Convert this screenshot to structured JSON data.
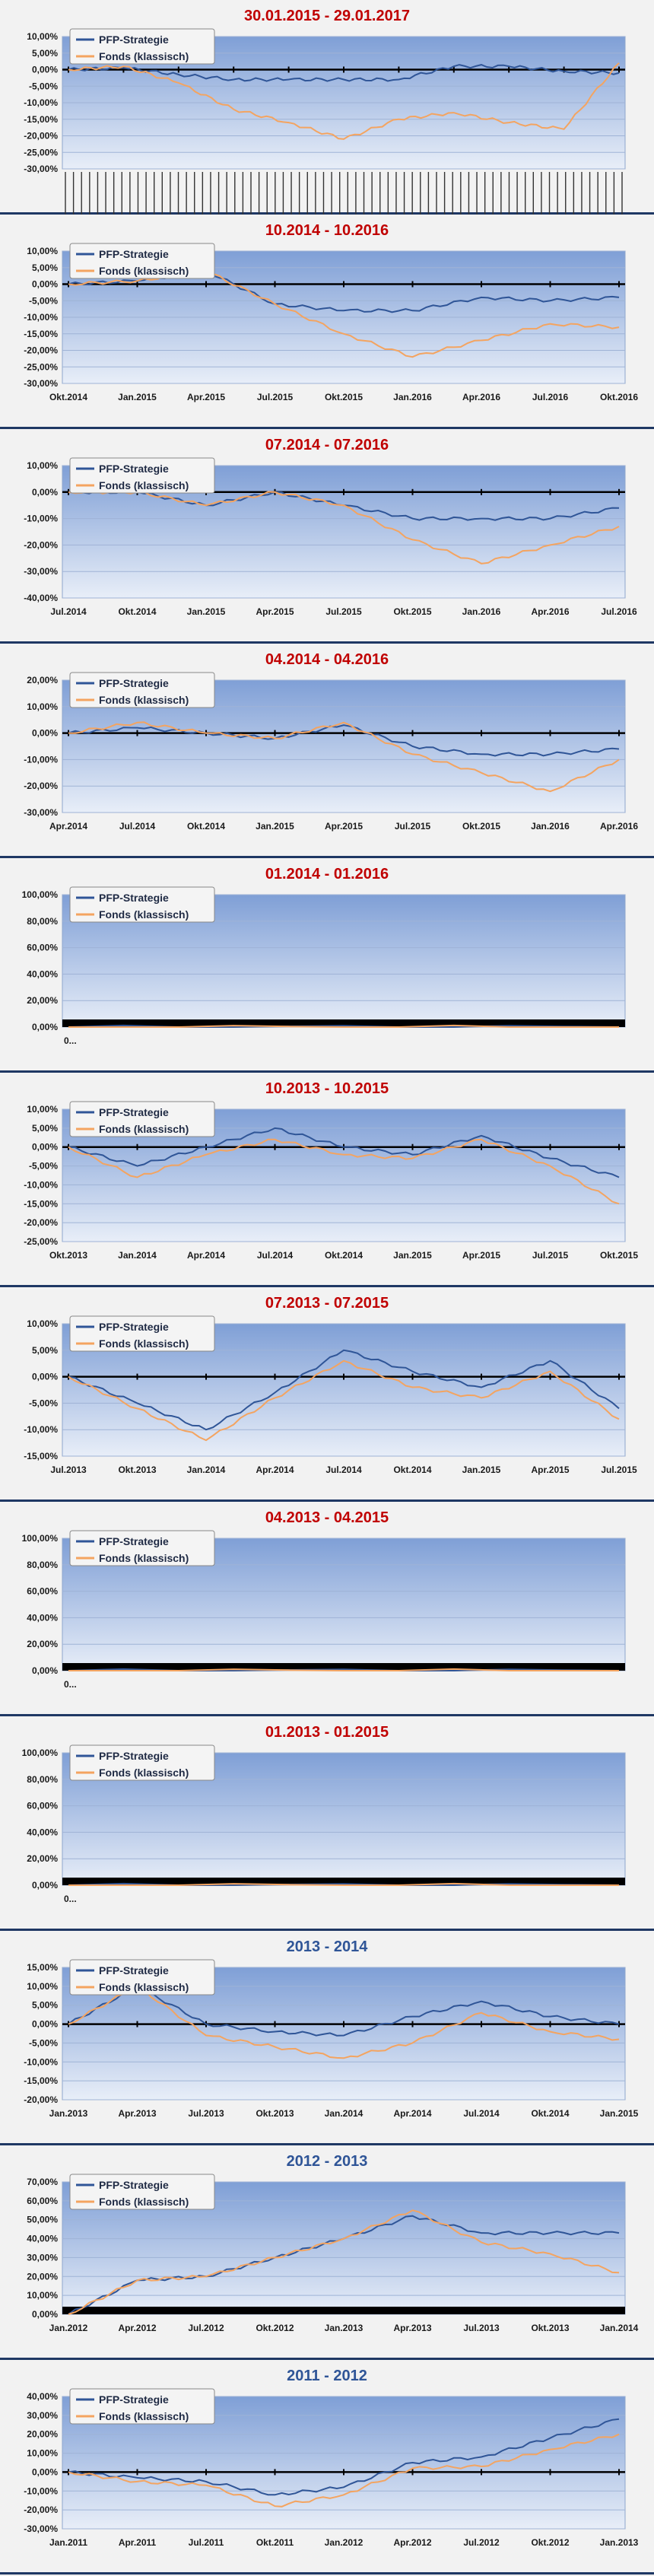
{
  "chart_data": [
    {
      "type": "line",
      "title": "30.01.2015 - 29.01.2017",
      "title_color": "#c00000",
      "ylim": [
        -30,
        10
      ],
      "yticks": [
        "10,00%",
        "5,00%",
        "0,00%",
        "-5,00%",
        "-10,00%",
        "-15,00%",
        "-20,00%",
        "-25,00%",
        "-30,00%"
      ],
      "x": [
        0,
        10,
        20,
        30,
        40,
        50,
        60,
        70,
        80,
        90,
        100
      ],
      "xticks": [],
      "dense_dates": true,
      "grid": true,
      "legend": "top-left",
      "series": [
        {
          "name": "PFP-Strategie",
          "color": "#2f5597",
          "values": [
            0,
            0.5,
            -1.5,
            -3,
            -3,
            -3,
            -3,
            1,
            1,
            -0.5,
            -1
          ]
        },
        {
          "name": "Fonds (klassisch)",
          "color": "#f4a460",
          "values": [
            0,
            1,
            -4,
            -12,
            -16,
            -21,
            -15,
            -13,
            -16,
            -18,
            2
          ]
        }
      ]
    },
    {
      "type": "line",
      "title": "10.2014 - 10.2016",
      "title_color": "#c00000",
      "ylim": [
        -30,
        10
      ],
      "yticks": [
        "10,00%",
        "5,00%",
        "0,00%",
        "-5,00%",
        "-10,00%",
        "-15,00%",
        "-20,00%",
        "-25,00%",
        "-30,00%"
      ],
      "x": [
        0,
        1,
        2,
        3,
        4,
        5,
        6,
        7,
        8
      ],
      "xticks": [
        "Okt.2014",
        "Jan.2015",
        "Apr.2015",
        "Jul.2015",
        "Okt.2015",
        "Jan.2016",
        "Apr.2016",
        "Jul.2016",
        "Okt.2016"
      ],
      "grid": true,
      "legend": "top-left",
      "series": [
        {
          "name": "PFP-Strategie",
          "color": "#2f5597",
          "values": [
            0,
            1,
            4,
            -6,
            -8,
            -8,
            -4,
            -5,
            -4
          ]
        },
        {
          "name": "Fonds (klassisch)",
          "color": "#f4a460",
          "values": [
            0,
            1,
            4,
            -6,
            -15,
            -22,
            -17,
            -12,
            -13
          ]
        }
      ]
    },
    {
      "type": "line",
      "title": "07.2014 - 07.2016",
      "title_color": "#c00000",
      "ylim": [
        -40,
        10
      ],
      "yticks": [
        "10,00%",
        "0,00%",
        "-10,00%",
        "-20,00%",
        "-30,00%",
        "-40,00%"
      ],
      "x": [
        0,
        1,
        2,
        3,
        4,
        5,
        6,
        7,
        8
      ],
      "xticks": [
        "Jul.2014",
        "Okt.2014",
        "Jan.2015",
        "Apr.2015",
        "Jul.2015",
        "Okt.2015",
        "Jan.2016",
        "Apr.2016",
        "Jul.2016"
      ],
      "grid": true,
      "legend": "top-left",
      "series": [
        {
          "name": "PFP-Strategie",
          "color": "#2f5597",
          "values": [
            0,
            0,
            -5,
            0,
            -5,
            -10,
            -10,
            -10,
            -6
          ]
        },
        {
          "name": "Fonds (klassisch)",
          "color": "#f4a460",
          "values": [
            0,
            0,
            -5,
            0,
            -5,
            -18,
            -27,
            -20,
            -13
          ]
        }
      ]
    },
    {
      "type": "line",
      "title": "04.2014 - 04.2016",
      "title_color": "#c00000",
      "ylim": [
        -30,
        20
      ],
      "yticks": [
        "20,00%",
        "10,00%",
        "0,00%",
        "-10,00%",
        "-20,00%",
        "-30,00%"
      ],
      "x": [
        0,
        1,
        2,
        3,
        4,
        5,
        6,
        7,
        8
      ],
      "xticks": [
        "Apr.2014",
        "Jul.2014",
        "Okt.2014",
        "Jan.2015",
        "Apr.2015",
        "Jul.2015",
        "Okt.2015",
        "Jan.2016",
        "Apr.2016"
      ],
      "grid": true,
      "legend": "top-left",
      "series": [
        {
          "name": "PFP-Strategie",
          "color": "#2f5597",
          "values": [
            0,
            2,
            0,
            -2,
            3,
            -5,
            -8,
            -8,
            -6
          ]
        },
        {
          "name": "Fonds (klassisch)",
          "color": "#f4a460",
          "values": [
            0,
            4,
            0,
            -2,
            4,
            -8,
            -15,
            -22,
            -10
          ]
        }
      ]
    },
    {
      "type": "line",
      "title": "01.2014 - 01.2016",
      "title_color": "#c00000",
      "ylim": [
        0,
        100
      ],
      "yticks": [
        "100,00%",
        "80,00%",
        "60,00%",
        "40,00%",
        "20,00%",
        "0,00%"
      ],
      "x": [
        0,
        1
      ],
      "xticks": [
        "0..."
      ],
      "grid": true,
      "legend": "top-left",
      "series": [
        {
          "name": "PFP-Strategie",
          "color": "#2f5597",
          "values": [
            0,
            0
          ]
        },
        {
          "name": "Fonds (klassisch)",
          "color": "#f4a460",
          "values": [
            0,
            0
          ]
        }
      ]
    },
    {
      "type": "line",
      "title": "10.2013 - 10.2015",
      "title_color": "#c00000",
      "ylim": [
        -25,
        10
      ],
      "yticks": [
        "10,00%",
        "5,00%",
        "0,00%",
        "-5,00%",
        "-10,00%",
        "-15,00%",
        "-20,00%",
        "-25,00%"
      ],
      "x": [
        0,
        1,
        2,
        3,
        4,
        5,
        6,
        7,
        8
      ],
      "xticks": [
        "Okt.2013",
        "Jan.2014",
        "Apr.2014",
        "Jul.2014",
        "Okt.2014",
        "Jan.2015",
        "Apr.2015",
        "Jul.2015",
        "Okt.2015"
      ],
      "grid": true,
      "legend": "top-left",
      "series": [
        {
          "name": "PFP-Strategie",
          "color": "#2f5597",
          "values": [
            0,
            -5,
            0,
            5,
            0,
            -2,
            3,
            -3,
            -8
          ]
        },
        {
          "name": "Fonds (klassisch)",
          "color": "#f4a460",
          "values": [
            0,
            -8,
            -2,
            2,
            -2,
            -3,
            2,
            -5,
            -15
          ]
        }
      ]
    },
    {
      "type": "line",
      "title": "07.2013 - 07.2015",
      "title_color": "#c00000",
      "ylim": [
        -15,
        10
      ],
      "yticks": [
        "10,00%",
        "5,00%",
        "0,00%",
        "-5,00%",
        "-10,00%",
        "-15,00%"
      ],
      "x": [
        0,
        1,
        2,
        3,
        4,
        5,
        6,
        7,
        8
      ],
      "xticks": [
        "Jul.2013",
        "Okt.2013",
        "Jan.2014",
        "Apr.2014",
        "Jul.2014",
        "Okt.2014",
        "Jan.2015",
        "Apr.2015",
        "Jul.2015"
      ],
      "grid": true,
      "legend": "top-left",
      "series": [
        {
          "name": "PFP-Strategie",
          "color": "#2f5597",
          "values": [
            0,
            -5,
            -10,
            -3,
            5,
            1,
            -2,
            3,
            -6
          ]
        },
        {
          "name": "Fonds (klassisch)",
          "color": "#f4a460",
          "values": [
            0,
            -6,
            -12,
            -4,
            3,
            -2,
            -4,
            1,
            -8
          ]
        }
      ]
    },
    {
      "type": "line",
      "title": "04.2013 - 04.2015",
      "title_color": "#c00000",
      "ylim": [
        0,
        100
      ],
      "yticks": [
        "100,00%",
        "80,00%",
        "60,00%",
        "40,00%",
        "20,00%",
        "0,00%"
      ],
      "x": [
        0,
        1
      ],
      "xticks": [
        "0..."
      ],
      "grid": true,
      "legend": "top-left",
      "series": [
        {
          "name": "PFP-Strategie",
          "color": "#2f5597",
          "values": [
            0,
            0
          ]
        },
        {
          "name": "Fonds (klassisch)",
          "color": "#f4a460",
          "values": [
            0,
            0
          ]
        }
      ]
    },
    {
      "type": "line",
      "title": "01.2013 - 01.2015",
      "title_color": "#c00000",
      "ylim": [
        0,
        100
      ],
      "yticks": [
        "100,00%",
        "80,00%",
        "60,00%",
        "40,00%",
        "20,00%",
        "0,00%"
      ],
      "x": [
        0,
        1
      ],
      "xticks": [
        "0..."
      ],
      "grid": true,
      "legend": "top-left",
      "series": [
        {
          "name": "PFP-Strategie",
          "color": "#2f5597",
          "values": [
            0,
            0
          ]
        },
        {
          "name": "Fonds (klassisch)",
          "color": "#f4a460",
          "values": [
            0,
            0
          ]
        }
      ]
    },
    {
      "type": "line",
      "title": "2013 - 2014",
      "title_color": "#2f5597",
      "ylim": [
        -20,
        15
      ],
      "yticks": [
        "15,00%",
        "10,00%",
        "5,00%",
        "0,00%",
        "-5,00%",
        "-10,00%",
        "-15,00%",
        "-20,00%"
      ],
      "x": [
        0,
        1,
        2,
        3,
        4,
        5,
        6,
        7,
        8
      ],
      "xticks": [
        "Jan.2013",
        "Apr.2013",
        "Jul.2013",
        "Okt.2013",
        "Jan.2014",
        "Apr.2014",
        "Jul.2014",
        "Okt.2014",
        "Jan.2015"
      ],
      "grid": true,
      "legend": "top-left",
      "series": [
        {
          "name": "PFP-Strategie",
          "color": "#2f5597",
          "values": [
            0,
            10,
            0,
            -2,
            -3,
            2,
            6,
            2,
            0
          ]
        },
        {
          "name": "Fonds (klassisch)",
          "color": "#f4a460",
          "values": [
            0,
            10,
            -3,
            -6,
            -9,
            -5,
            3,
            -2,
            -4
          ]
        }
      ]
    },
    {
      "type": "line",
      "title": "2012 - 2013",
      "title_color": "#2f5597",
      "ylim": [
        0,
        70
      ],
      "yticks": [
        "70,00%",
        "60,00%",
        "50,00%",
        "40,00%",
        "30,00%",
        "20,00%",
        "10,00%",
        "0,00%"
      ],
      "x": [
        0,
        1,
        2,
        3,
        4,
        5,
        6,
        7,
        8
      ],
      "xticks": [
        "Jan.2012",
        "Apr.2012",
        "Jul.2012",
        "Okt.2012",
        "Jan.2013",
        "Apr.2013",
        "Jul.2013",
        "Okt.2013",
        "Jan.2014"
      ],
      "grid": true,
      "legend": "top-left",
      "series": [
        {
          "name": "PFP-Strategie",
          "color": "#2f5597",
          "values": [
            0,
            18,
            20,
            30,
            40,
            52,
            43,
            43,
            43
          ]
        },
        {
          "name": "Fonds (klassisch)",
          "color": "#f4a460",
          "values": [
            0,
            18,
            20,
            30,
            40,
            55,
            38,
            32,
            22
          ]
        }
      ]
    },
    {
      "type": "line",
      "title": "2011 - 2012",
      "title_color": "#2f5597",
      "ylim": [
        -30,
        40
      ],
      "yticks": [
        "40,00%",
        "30,00%",
        "20,00%",
        "10,00%",
        "0,00%",
        "-10,00%",
        "-20,00%",
        "-30,00%"
      ],
      "x": [
        0,
        1,
        2,
        3,
        4,
        5,
        6,
        7,
        8
      ],
      "xticks": [
        "Jan.2011",
        "Apr.2011",
        "Jul.2011",
        "Okt.2011",
        "Jan.2012",
        "Apr.2012",
        "Jul.2012",
        "Okt.2012",
        "Jan.2013"
      ],
      "grid": true,
      "legend": "top-left",
      "series": [
        {
          "name": "PFP-Strategie",
          "color": "#2f5597",
          "values": [
            0,
            -3,
            -5,
            -12,
            -8,
            5,
            8,
            18,
            28
          ]
        },
        {
          "name": "Fonds (klassisch)",
          "color": "#f4a460",
          "values": [
            0,
            -5,
            -7,
            -18,
            -12,
            2,
            3,
            12,
            20
          ]
        }
      ]
    }
  ]
}
